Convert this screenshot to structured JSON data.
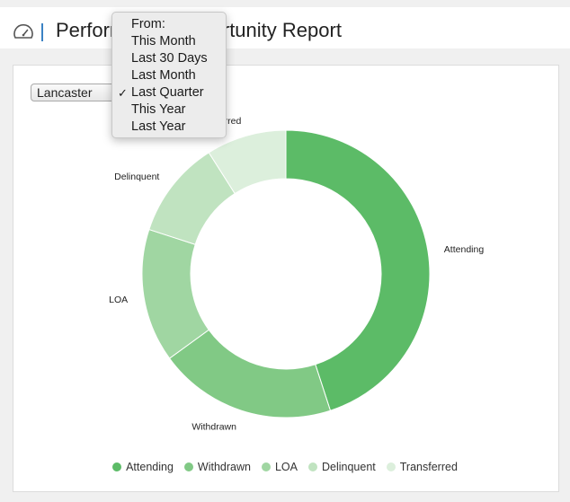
{
  "header": {
    "title": "Performance Opportunity Report",
    "icon": "gauge-icon"
  },
  "filters": {
    "location": "Lancaster",
    "period_menu": {
      "heading": "From:",
      "options": [
        "This Month",
        "Last 30 Days",
        "Last Month",
        "Last Quarter",
        "This Year",
        "Last Year"
      ],
      "selected": "Last Quarter"
    }
  },
  "chart_data": {
    "type": "pie",
    "categories": [
      "Attending",
      "Withdrawn",
      "LOA",
      "Delinquent",
      "Transferred"
    ],
    "values": [
      45,
      20,
      15,
      11,
      9
    ],
    "colors": [
      "#5cbb67",
      "#81c985",
      "#a0d6a2",
      "#c0e3c0",
      "#dcefdc"
    ],
    "legend_position": "bottom"
  }
}
